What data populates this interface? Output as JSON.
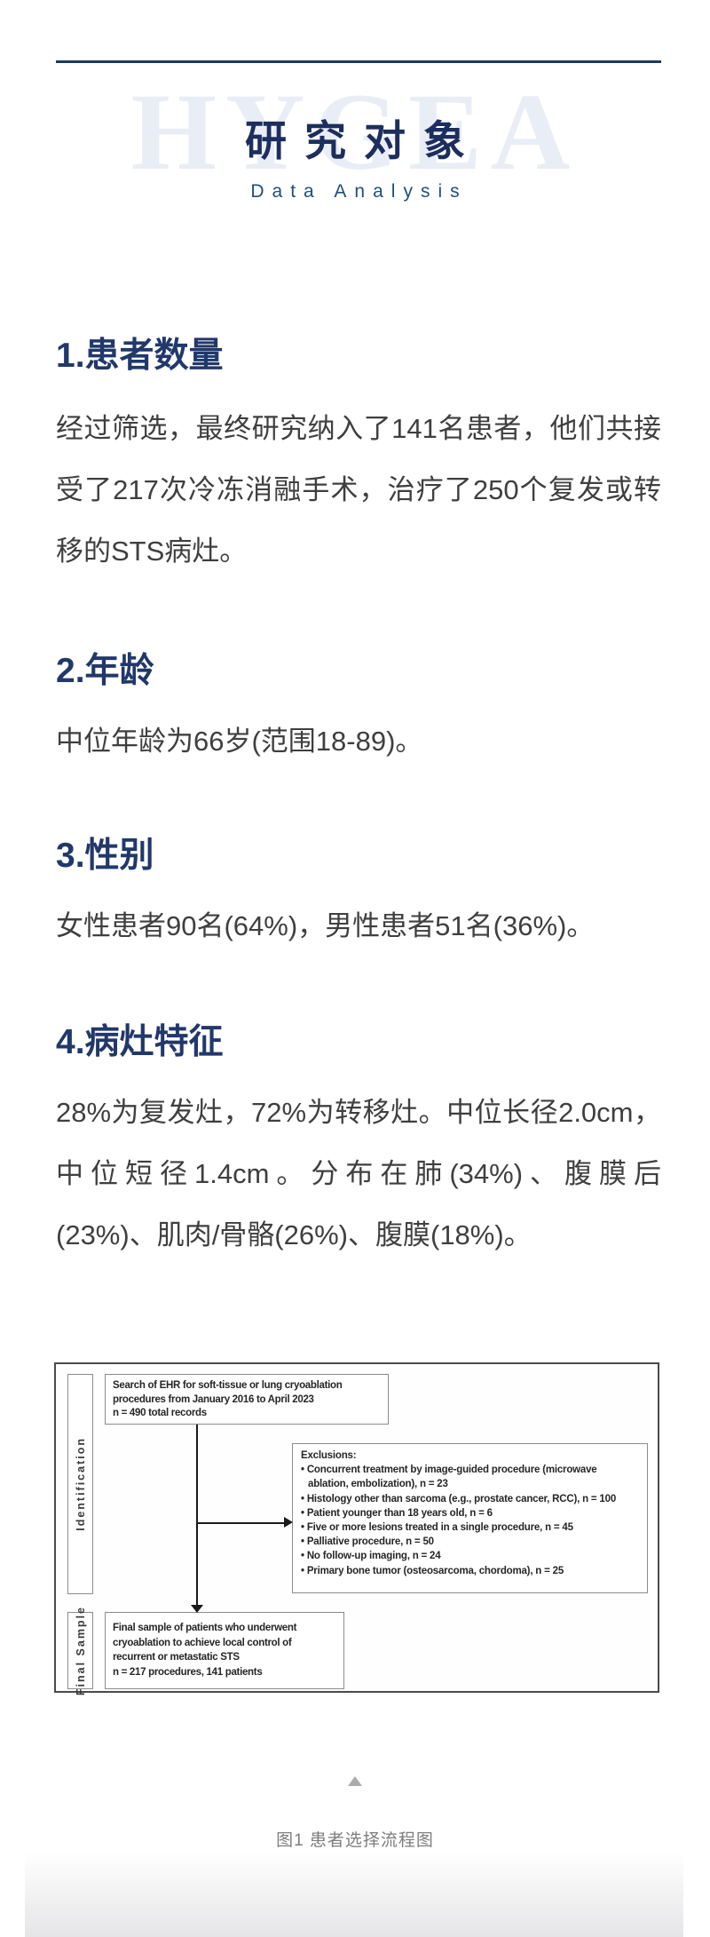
{
  "header": {
    "watermark": "HYGEA",
    "title": "研究对象",
    "subtitle": "Data Analysis"
  },
  "sections": [
    {
      "heading": "1.患者数量",
      "body": "经过筛选，最终研究纳入了141名患者，他们共接受了217次冷冻消融手术，治疗了250个复发或转移的STS病灶。"
    },
    {
      "heading": "2.年龄",
      "body": "中位年龄为66岁(范围18-89)。"
    },
    {
      "heading": "3.性别",
      "body": "女性患者90名(64%)，男性患者51名(36%)。"
    },
    {
      "heading": "4.病灶特征",
      "body": "28%为复发灶，72%为转移灶。中位长径2.0cm，中位短径1.4cm。分布在肺(34%)、腹膜后(23%)、肌肉/骨骼(26%)、腹膜(18%)。"
    }
  ],
  "flowchart": {
    "stage_labels": [
      "Identification",
      "Final Sample"
    ],
    "search_box": {
      "lines": [
        "Search of EHR for soft-tissue or lung cryoablation",
        "procedures from January 2016 to April 2023",
        "n = 490 total records"
      ]
    },
    "exclusions_box": {
      "title": "Exclusions:",
      "items": [
        "Concurrent treatment by image-guided procedure (microwave ablation, embolization), n = 23",
        "Histology other than sarcoma (e.g., prostate cancer, RCC), n = 100",
        "Patient younger than 18 years old, n = 6",
        "Five or more lesions treated in a single procedure, n = 45",
        "Palliative procedure, n = 50",
        "No follow-up imaging, n = 24",
        "Primary bone tumor (osteosarcoma, chordoma), n = 25"
      ]
    },
    "final_box": {
      "lines": [
        "Final sample of patients who underwent",
        "cryoablation to achieve local control of",
        "recurrent or metastatic STS",
        "n = 217 procedures, 141 patients"
      ]
    }
  },
  "figure": {
    "caption": "图1 患者选择流程图",
    "collapse_icon": "triangle-up"
  },
  "colors": {
    "accent_navy": "#1f3864",
    "title_navy": "#1c2e5e",
    "subtitle_blue": "#1f4e79",
    "heading_navy": "#21386b",
    "body_text": "#3f3f3f",
    "watermark": "#e9edf5",
    "caption_gray": "#7d7d7d",
    "flowchart_border": "#4a4a4a",
    "box_border": "#8c8c8c"
  }
}
